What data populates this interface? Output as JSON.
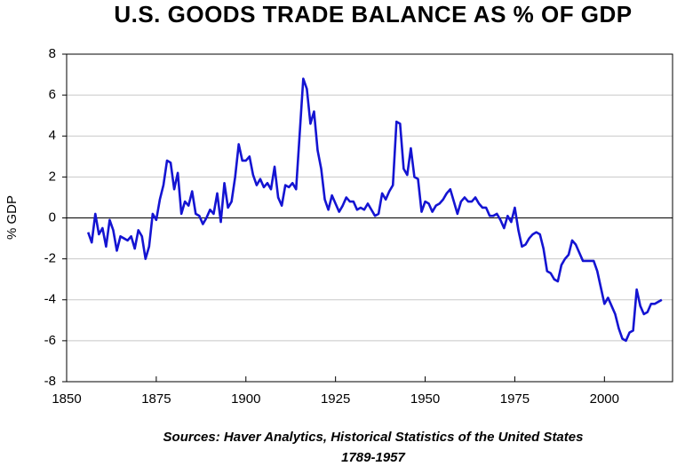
{
  "chart_data": {
    "type": "line",
    "title": "U.S. GOODS TRADE BALANCE AS % OF GDP",
    "ylabel": "% GDP",
    "source": [
      "Sources:  Haver Analytics, Historical Statistics of the United States",
      "1789-1957"
    ],
    "color": "#1414d2",
    "grid": true,
    "xlim": [
      1850,
      2019
    ],
    "ylim": [
      -8,
      8
    ],
    "xticks": [
      1850,
      1875,
      1900,
      1925,
      1950,
      1975,
      2000
    ],
    "yticks": [
      -8,
      -6,
      -4,
      -2,
      0,
      2,
      4,
      6,
      8
    ],
    "x": [
      1856,
      1857,
      1858,
      1859,
      1860,
      1861,
      1862,
      1863,
      1864,
      1865,
      1866,
      1867,
      1868,
      1869,
      1870,
      1871,
      1872,
      1873,
      1874,
      1875,
      1876,
      1877,
      1878,
      1879,
      1880,
      1881,
      1882,
      1883,
      1884,
      1885,
      1886,
      1887,
      1888,
      1889,
      1890,
      1891,
      1892,
      1893,
      1894,
      1895,
      1896,
      1897,
      1898,
      1899,
      1900,
      1901,
      1902,
      1903,
      1904,
      1905,
      1906,
      1907,
      1908,
      1909,
      1910,
      1911,
      1912,
      1913,
      1914,
      1915,
      1916,
      1917,
      1918,
      1919,
      1920,
      1921,
      1922,
      1923,
      1924,
      1925,
      1926,
      1927,
      1928,
      1929,
      1930,
      1931,
      1932,
      1933,
      1934,
      1935,
      1936,
      1937,
      1938,
      1939,
      1940,
      1941,
      1942,
      1943,
      1944,
      1945,
      1946,
      1947,
      1948,
      1949,
      1950,
      1951,
      1952,
      1953,
      1954,
      1955,
      1956,
      1957,
      1958,
      1959,
      1960,
      1961,
      1962,
      1963,
      1964,
      1965,
      1966,
      1967,
      1968,
      1969,
      1970,
      1971,
      1972,
      1973,
      1974,
      1975,
      1976,
      1977,
      1978,
      1979,
      1980,
      1981,
      1982,
      1983,
      1984,
      1985,
      1986,
      1987,
      1988,
      1989,
      1990,
      1991,
      1992,
      1993,
      1994,
      1995,
      1996,
      1997,
      1998,
      1999,
      2000,
      2001,
      2002,
      2003,
      2004,
      2005,
      2006,
      2007,
      2008,
      2009,
      2010,
      2011,
      2012,
      2013,
      2014,
      2015,
      2016
    ],
    "values": [
      -0.7,
      -1.2,
      0.2,
      -0.8,
      -0.5,
      -1.4,
      -0.1,
      -0.6,
      -1.6,
      -0.9,
      -1.0,
      -1.1,
      -0.9,
      -1.5,
      -0.6,
      -0.9,
      -2.0,
      -1.4,
      0.2,
      -0.1,
      0.9,
      1.6,
      2.8,
      2.7,
      1.4,
      2.2,
      0.2,
      0.8,
      0.6,
      1.3,
      0.2,
      0.1,
      -0.3,
      0.0,
      0.4,
      0.2,
      1.2,
      -0.2,
      1.7,
      0.5,
      0.8,
      2.0,
      3.6,
      2.8,
      2.8,
      3.0,
      2.1,
      1.6,
      1.9,
      1.5,
      1.7,
      1.4,
      2.5,
      1.0,
      0.6,
      1.6,
      1.5,
      1.7,
      1.4,
      4.1,
      6.8,
      6.3,
      4.6,
      5.2,
      3.3,
      2.4,
      0.9,
      0.4,
      1.1,
      0.7,
      0.3,
      0.6,
      1.0,
      0.8,
      0.8,
      0.4,
      0.5,
      0.4,
      0.7,
      0.4,
      0.1,
      0.2,
      1.2,
      0.9,
      1.3,
      1.6,
      4.7,
      4.6,
      2.4,
      2.1,
      3.4,
      2.0,
      1.9,
      0.3,
      0.8,
      0.7,
      0.3,
      0.6,
      0.7,
      0.9,
      1.2,
      1.4,
      0.8,
      0.2,
      0.8,
      1.0,
      0.8,
      0.8,
      1.0,
      0.7,
      0.5,
      0.5,
      0.1,
      0.1,
      0.2,
      -0.1,
      -0.5,
      0.1,
      -0.2,
      0.5,
      -0.6,
      -1.4,
      -1.3,
      -1.0,
      -0.8,
      -0.7,
      -0.8,
      -1.5,
      -2.6,
      -2.7,
      -3.0,
      -3.1,
      -2.3,
      -2.0,
      -1.8,
      -1.1,
      -1.3,
      -1.7,
      -2.1,
      -2.1,
      -2.1,
      -2.1,
      -2.6,
      -3.4,
      -4.2,
      -3.9,
      -4.3,
      -4.7,
      -5.4,
      -5.9,
      -6.0,
      -5.6,
      -5.5,
      -3.5,
      -4.3,
      -4.7,
      -4.6,
      -4.2,
      -4.2,
      -4.1,
      -4.0
    ]
  }
}
